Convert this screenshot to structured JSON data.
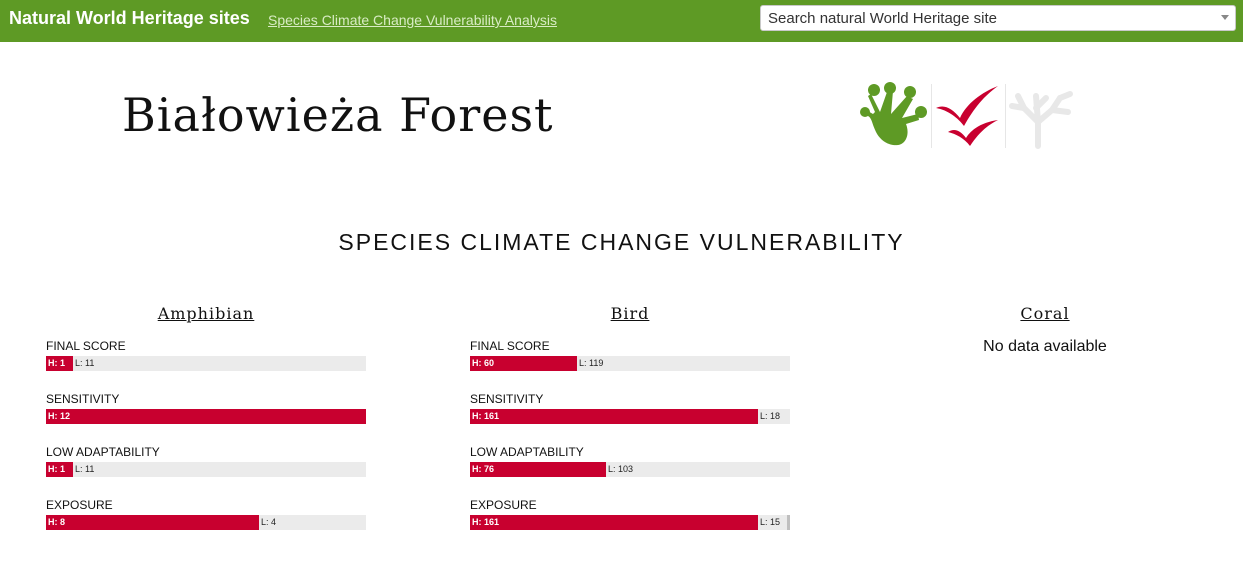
{
  "topbar": {
    "brand": "Natural World Heritage sites",
    "link": "Species Climate Change Vulnerability Analysis",
    "search_placeholder": "Search natural World Heritage site"
  },
  "site": {
    "title": "Białowieża Forest",
    "taxa_icons": [
      {
        "name": "amphibian-icon",
        "color": "#5e9a25"
      },
      {
        "name": "bird-icon",
        "color": "#c8002f"
      },
      {
        "name": "coral-icon",
        "color": "#e8e8e8"
      }
    ]
  },
  "section": {
    "title": "SPECIES CLIMATE CHANGE VULNERABILITY"
  },
  "colors": {
    "high": "#c8002f",
    "low": "#ebebeb",
    "brand": "#5e9a25"
  },
  "groups": [
    {
      "key": "amphibian",
      "title": "Amphibian",
      "metrics": [
        {
          "key": "final-score",
          "label": "FINAL SCORE",
          "h": 1,
          "l": 11,
          "h_text": "H: 1",
          "l_text": "L: 11"
        },
        {
          "key": "sensitivity",
          "label": "SENSITIVITY",
          "h": 12,
          "l": 0,
          "h_text": "H: 12",
          "l_text": ""
        },
        {
          "key": "low-adaptability",
          "label": "LOW ADAPTABILITY",
          "h": 1,
          "l": 11,
          "h_text": "H: 1",
          "l_text": "L: 11"
        },
        {
          "key": "exposure",
          "label": "EXPOSURE",
          "h": 8,
          "l": 4,
          "h_text": "H: 8",
          "l_text": "L: 4"
        }
      ]
    },
    {
      "key": "bird",
      "title": "Bird",
      "metrics": [
        {
          "key": "final-score",
          "label": "FINAL SCORE",
          "h": 60,
          "l": 119,
          "h_text": "H: 60",
          "l_text": "L: 119"
        },
        {
          "key": "sensitivity",
          "label": "SENSITIVITY",
          "h": 161,
          "l": 18,
          "h_text": "H: 161",
          "l_text": "L: 18"
        },
        {
          "key": "low-adaptability",
          "label": "LOW ADAPTABILITY",
          "h": 76,
          "l": 103,
          "h_text": "H: 76",
          "l_text": "L: 103"
        },
        {
          "key": "exposure",
          "label": "EXPOSURE",
          "h": 161,
          "l": 15,
          "unknown": 3,
          "h_text": "H: 161",
          "l_text": "L: 15"
        }
      ]
    },
    {
      "key": "coral",
      "title": "Coral",
      "no_data": "No data available"
    }
  ]
}
